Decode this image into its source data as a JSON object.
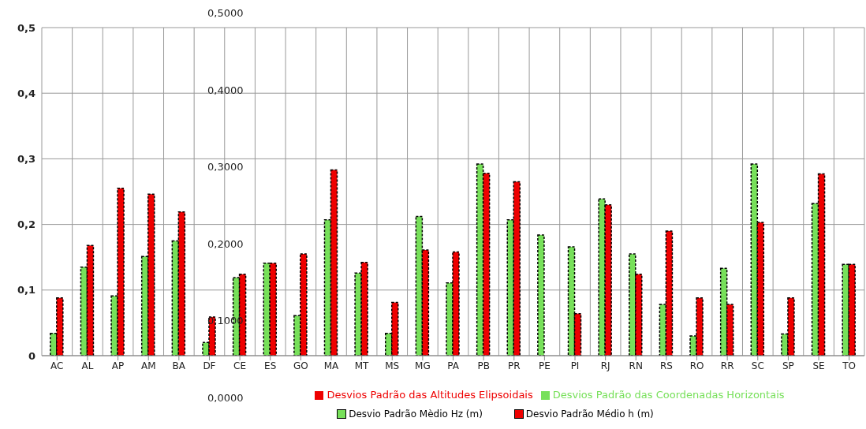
{
  "chart_data": {
    "type": "bar",
    "categories": [
      "AC",
      "AL",
      "AP",
      "AM",
      "BA",
      "DF",
      "CE",
      "ES",
      "GO",
      "MA",
      "MT",
      "MS",
      "MG",
      "PA",
      "PB",
      "PR",
      "PE",
      "PI",
      "RJ",
      "RN",
      "RS",
      "RO",
      "RR",
      "SC",
      "SP",
      "SE",
      "TO"
    ],
    "series": [
      {
        "name": "Desvios Padrão das Coordenadas Horizontais",
        "color": "#77e05a",
        "values": [
          0.034,
          0.135,
          0.091,
          0.151,
          0.175,
          0.02,
          0.119,
          0.141,
          0.061,
          0.207,
          0.126,
          0.034,
          0.212,
          0.111,
          0.292,
          0.207,
          0.184,
          0.166,
          0.239,
          0.155,
          0.078,
          0.03,
          0.133,
          0.292,
          0.033,
          0.232,
          0.139
        ]
      },
      {
        "name": "Desvios Padrão das Altitudes Elipsoidais",
        "color": "#ee0000",
        "values": [
          0.088,
          0.168,
          0.255,
          0.246,
          0.219,
          0.059,
          0.124,
          0.141,
          0.155,
          0.283,
          0.142,
          0.081,
          0.161,
          0.158,
          0.278,
          0.265,
          null,
          0.064,
          0.23,
          0.124,
          0.19,
          0.088,
          0.078,
          0.203,
          0.088,
          0.277,
          0.139
        ]
      }
    ],
    "ylim": [
      0,
      0.5
    ],
    "yticks": [
      0,
      {
        "value": 0.1,
        "label": "0,1"
      },
      {
        "value": 0.2,
        "label": "0,2"
      },
      {
        "value": 0.3,
        "label": "0,3"
      },
      {
        "value": 0.4,
        "label": "0,4"
      },
      {
        "value": 0.5,
        "label": "0,5"
      }
    ],
    "grid": true,
    "legend": "bottom",
    "annotations": [
      "0,5000",
      "0,4000",
      "0,3000",
      "0,2000",
      "0,1000",
      "0,0000",
      "Desvio Padrão Mèdio Hz (m)",
      "Desvio Padrão Médio h (m)"
    ]
  }
}
